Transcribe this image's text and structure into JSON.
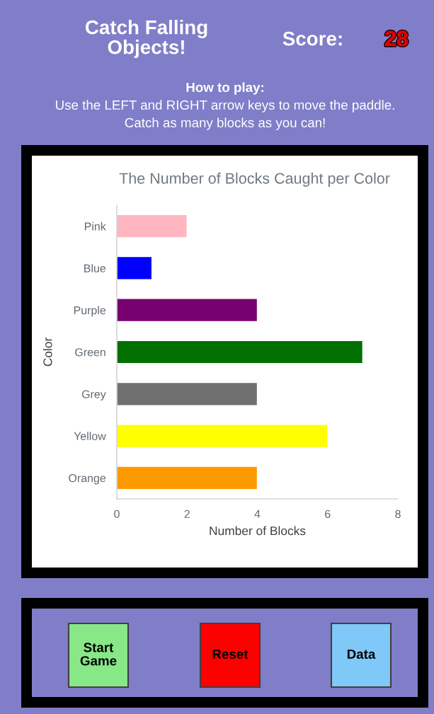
{
  "chart_data": {
    "type": "bar",
    "orientation": "horizontal",
    "title": "The Number of Blocks Caught per Color",
    "xlabel": "Number of Blocks",
    "ylabel": "Color",
    "categories": [
      "Pink",
      "Blue",
      "Purple",
      "Green",
      "Grey",
      "Yellow",
      "Orange"
    ],
    "values": [
      2,
      1,
      4,
      7,
      4,
      6,
      4
    ],
    "colors": [
      "#ffb6c1",
      "#0000ff",
      "#770070",
      "#007000",
      "#707070",
      "#ffff00",
      "#ff9900"
    ],
    "xlim": [
      0,
      8
    ],
    "xticks": [
      0,
      2,
      4,
      6,
      8
    ],
    "grid": false,
    "annotations": [
      "Catch Falling Objects!",
      "Score:",
      "28",
      "How to play:",
      "Use the LEFT and RIGHT arrow keys to move the paddle.",
      "Catch as many blocks as you can!",
      "Start Game",
      "Reset",
      "Data"
    ]
  }
}
